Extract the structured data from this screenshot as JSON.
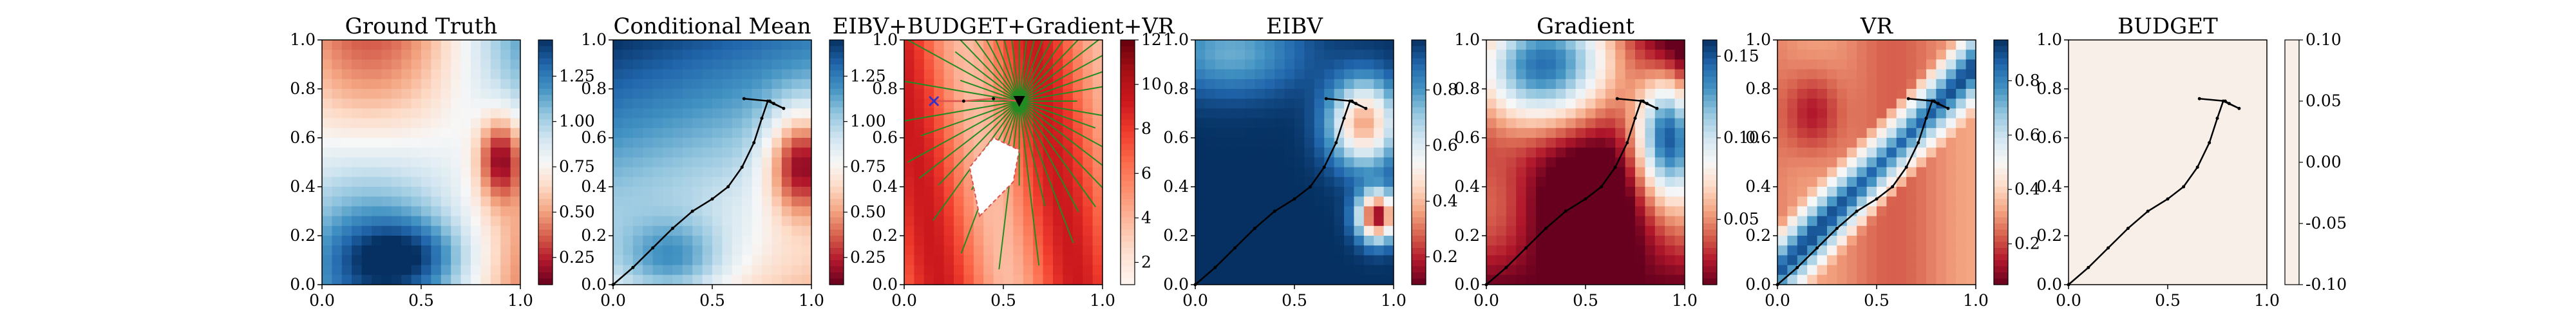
{
  "chart_data": [
    {
      "type": "heatmap",
      "title": "Ground Truth",
      "xlim": [
        0,
        1
      ],
      "ylim": [
        0,
        1
      ],
      "x_ticks": [
        "0.0",
        "0.5",
        "1.0"
      ],
      "y_ticks": [
        "0.0",
        "0.2",
        "0.4",
        "0.6",
        "0.8",
        "1.0"
      ],
      "colormap": "RdBu",
      "colorbar": {
        "range": [
          0.1,
          1.45
        ],
        "ticks": [
          "0.25",
          "0.50",
          "0.75",
          "1.00",
          "1.25"
        ]
      },
      "path": []
    },
    {
      "type": "heatmap",
      "title": "Conditional Mean",
      "xlim": [
        0,
        1
      ],
      "ylim": [
        0,
        1
      ],
      "x_ticks": [
        "0.0",
        "0.5",
        "1.0"
      ],
      "y_ticks": [
        "0.0",
        "0.2",
        "0.4",
        "0.6",
        "0.8",
        "1.0"
      ],
      "colormap": "RdBu",
      "colorbar": {
        "range": [
          0.1,
          1.45
        ],
        "ticks": [
          "0.25",
          "0.50",
          "0.75",
          "1.00",
          "1.25"
        ]
      },
      "path": [
        [
          0.0,
          0.0
        ],
        [
          0.1,
          0.07
        ],
        [
          0.2,
          0.15
        ],
        [
          0.3,
          0.23
        ],
        [
          0.4,
          0.3
        ],
        [
          0.5,
          0.35
        ],
        [
          0.58,
          0.4
        ],
        [
          0.65,
          0.48
        ],
        [
          0.71,
          0.58
        ],
        [
          0.75,
          0.68
        ],
        [
          0.78,
          0.75
        ],
        [
          0.86,
          0.72
        ],
        [
          0.81,
          0.74
        ],
        [
          0.79,
          0.75
        ],
        [
          0.66,
          0.76
        ]
      ]
    },
    {
      "type": "heatmap",
      "title": "EIBV+BUDGET+Gradient+VR",
      "xlim": [
        0,
        1
      ],
      "ylim": [
        0,
        1
      ],
      "x_ticks": [
        "0.0",
        "0.5",
        "1.0"
      ],
      "y_ticks": [
        "0.0",
        "0.2",
        "0.4",
        "0.6",
        "0.8",
        "1.0"
      ],
      "colormap": "Reds",
      "colorbar": {
        "range": [
          1,
          12
        ],
        "ticks": [
          "2",
          "4",
          "6",
          "8",
          "10",
          "12"
        ]
      },
      "path": [
        [
          0.58,
          0.75
        ],
        [
          0.45,
          0.76
        ],
        [
          0.3,
          0.75
        ],
        [
          0.15,
          0.75
        ]
      ],
      "markers": {
        "current": [
          0.58,
          0.75
        ],
        "target": [
          0.15,
          0.75
        ]
      }
    },
    {
      "type": "heatmap",
      "title": "EIBV",
      "xlim": [
        0,
        1
      ],
      "ylim": [
        0,
        1
      ],
      "x_ticks": [
        "0.0",
        "0.5",
        "1.0"
      ],
      "y_ticks": [
        "0.0",
        "0.2",
        "0.4",
        "0.6",
        "0.8",
        "1.0"
      ],
      "colormap": "RdBu",
      "colorbar": {
        "range": [
          0.1,
          0.98
        ],
        "ticks": [
          "0.2",
          "0.4",
          "0.6",
          "0.8"
        ]
      },
      "path": [
        [
          0.0,
          0.0
        ],
        [
          0.1,
          0.07
        ],
        [
          0.2,
          0.15
        ],
        [
          0.3,
          0.23
        ],
        [
          0.4,
          0.3
        ],
        [
          0.5,
          0.35
        ],
        [
          0.58,
          0.4
        ],
        [
          0.65,
          0.48
        ],
        [
          0.71,
          0.58
        ],
        [
          0.75,
          0.68
        ],
        [
          0.78,
          0.75
        ],
        [
          0.86,
          0.72
        ],
        [
          0.81,
          0.74
        ],
        [
          0.79,
          0.75
        ],
        [
          0.66,
          0.76
        ]
      ]
    },
    {
      "type": "heatmap",
      "title": "Gradient",
      "xlim": [
        0,
        1
      ],
      "ylim": [
        0,
        1
      ],
      "x_ticks": [
        "0.0",
        "0.5",
        "1.0"
      ],
      "y_ticks": [
        "0.0",
        "0.2",
        "0.4",
        "0.6",
        "0.8",
        "1.0"
      ],
      "colormap": "RdBu",
      "colorbar": {
        "range": [
          0.01,
          0.16
        ],
        "ticks": [
          "0.05",
          "0.10",
          "0.15"
        ]
      },
      "path": [
        [
          0.0,
          0.0
        ],
        [
          0.1,
          0.07
        ],
        [
          0.2,
          0.15
        ],
        [
          0.3,
          0.23
        ],
        [
          0.4,
          0.3
        ],
        [
          0.5,
          0.35
        ],
        [
          0.58,
          0.4
        ],
        [
          0.65,
          0.48
        ],
        [
          0.71,
          0.58
        ],
        [
          0.75,
          0.68
        ],
        [
          0.78,
          0.75
        ],
        [
          0.86,
          0.72
        ],
        [
          0.81,
          0.74
        ],
        [
          0.79,
          0.75
        ],
        [
          0.66,
          0.76
        ]
      ]
    },
    {
      "type": "heatmap",
      "title": "VR",
      "xlim": [
        0,
        1
      ],
      "ylim": [
        0,
        1
      ],
      "x_ticks": [
        "0.0",
        "0.5",
        "1.0"
      ],
      "y_ticks": [
        "0.0",
        "0.2",
        "0.4",
        "0.6",
        "0.8",
        "1.0"
      ],
      "colormap": "RdBu",
      "colorbar": {
        "range": [
          0.05,
          0.95
        ],
        "ticks": [
          "0.2",
          "0.4",
          "0.6",
          "0.8"
        ]
      },
      "path": [
        [
          0.0,
          0.0
        ],
        [
          0.1,
          0.07
        ],
        [
          0.2,
          0.15
        ],
        [
          0.3,
          0.23
        ],
        [
          0.4,
          0.3
        ],
        [
          0.5,
          0.35
        ],
        [
          0.58,
          0.4
        ],
        [
          0.65,
          0.48
        ],
        [
          0.71,
          0.58
        ],
        [
          0.75,
          0.68
        ],
        [
          0.78,
          0.75
        ],
        [
          0.86,
          0.72
        ],
        [
          0.81,
          0.74
        ],
        [
          0.79,
          0.75
        ],
        [
          0.66,
          0.76
        ]
      ]
    },
    {
      "type": "heatmap",
      "title": "BUDGET",
      "xlim": [
        0,
        1
      ],
      "ylim": [
        0,
        1
      ],
      "x_ticks": [
        "0.0",
        "0.5",
        "1.0"
      ],
      "y_ticks": [
        "0.0",
        "0.2",
        "0.4",
        "0.6",
        "0.8",
        "1.0"
      ],
      "colormap": "RdBu",
      "colorbar": {
        "range": [
          -0.1,
          0.1
        ],
        "ticks": [
          "-0.10",
          "-0.05",
          "0.00",
          "0.05",
          "0.10"
        ]
      },
      "path": [
        [
          0.0,
          0.0
        ],
        [
          0.1,
          0.07
        ],
        [
          0.2,
          0.15
        ],
        [
          0.3,
          0.23
        ],
        [
          0.4,
          0.3
        ],
        [
          0.5,
          0.35
        ],
        [
          0.58,
          0.4
        ],
        [
          0.65,
          0.48
        ],
        [
          0.71,
          0.58
        ],
        [
          0.75,
          0.68
        ],
        [
          0.78,
          0.75
        ],
        [
          0.86,
          0.72
        ],
        [
          0.81,
          0.74
        ],
        [
          0.79,
          0.75
        ],
        [
          0.66,
          0.76
        ]
      ]
    }
  ]
}
